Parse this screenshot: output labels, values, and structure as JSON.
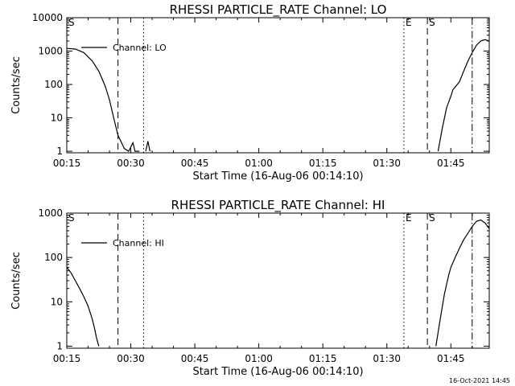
{
  "footer_timestamp": "16-Oct-2021 14:45",
  "colors": {
    "background": "#ffffff",
    "ink": "#000000"
  },
  "chart_data": [
    {
      "type": "line",
      "title": "RHESSI PARTICLE_RATE Channel: LO",
      "xlabel": "Start Time (16-Aug-06 00:14:10)",
      "ylabel": "Counts/sec",
      "yscale": "log",
      "xlim": [
        15,
        114
      ],
      "ylim": [
        0.9,
        10000
      ],
      "x_ticks": [
        15,
        30,
        45,
        60,
        75,
        90,
        105
      ],
      "x_tick_labels": [
        "00:15",
        "00:30",
        "00:45",
        "01:00",
        "01:15",
        "01:30",
        "01:45"
      ],
      "y_ticks": [
        1,
        10,
        100,
        1000,
        10000
      ],
      "y_tick_labels": [
        "1",
        "10",
        "100",
        "1000",
        "10000"
      ],
      "legend": {
        "entries": [
          "Channel: LO"
        ],
        "position": "top-left"
      },
      "series": [
        {
          "name": "Channel: LO",
          "segments": [
            {
              "x": [
                15,
                17,
                19,
                21,
                22.5,
                24,
                25,
                26,
                27,
                28.5,
                29.5,
                30.5,
                31,
                32
              ],
              "y": [
                1200,
                1150,
                900,
                500,
                250,
                90,
                35,
                10,
                3,
                1.2,
                1,
                1.8,
                1,
                1
              ]
            },
            {
              "x": [
                33.5,
                34,
                34.5
              ],
              "y": [
                1,
                2,
                1
              ]
            },
            {
              "x": [
                102,
                103,
                104,
                105,
                105.5,
                107,
                108,
                109,
                110,
                111,
                112,
                113,
                114
              ],
              "y": [
                1,
                5,
                20,
                45,
                70,
                120,
                250,
                500,
                900,
                1500,
                2000,
                2200,
                2000
              ]
            }
          ]
        }
      ],
      "markers": [
        {
          "label": "S",
          "x": 15,
          "style": "dashdot"
        },
        {
          "label": "",
          "x": 27,
          "style": "dashed"
        },
        {
          "label": "",
          "x": 33,
          "style": "dotted"
        },
        {
          "label": "E",
          "x": 94,
          "style": "dotted"
        },
        {
          "label": "S",
          "x": 99.5,
          "style": "dashed"
        },
        {
          "label": "",
          "x": 110,
          "style": "dashdot"
        }
      ]
    },
    {
      "type": "line",
      "title": "RHESSI PARTICLE_RATE Channel: HI",
      "xlabel": "Start Time (16-Aug-06 00:14:10)",
      "ylabel": "Counts/sec",
      "yscale": "log",
      "xlim": [
        15,
        114
      ],
      "ylim": [
        0.9,
        1000
      ],
      "x_ticks": [
        15,
        30,
        45,
        60,
        75,
        90,
        105
      ],
      "x_tick_labels": [
        "00:15",
        "00:30",
        "00:45",
        "01:00",
        "01:15",
        "01:30",
        "01:45"
      ],
      "y_ticks": [
        1,
        10,
        100,
        1000
      ],
      "y_tick_labels": [
        "1",
        "10",
        "100",
        "1000"
      ],
      "legend": {
        "entries": [
          "Channel: HI"
        ],
        "position": "top-left"
      },
      "series": [
        {
          "name": "Channel: HI",
          "segments": [
            {
              "x": [
                15,
                16,
                17,
                18,
                19,
                20,
                21,
                21.5,
                22,
                22.5
              ],
              "y": [
                60,
                45,
                30,
                20,
                13,
                8,
                4,
                2.5,
                1.5,
                1
              ]
            },
            {
              "x": [
                101.5,
                102.5,
                103.5,
                104.5,
                105,
                106,
                107,
                108,
                109,
                110,
                111,
                112,
                113,
                114
              ],
              "y": [
                1,
                4,
                15,
                40,
                60,
                100,
                160,
                250,
                350,
                500,
                650,
                700,
                600,
                450
              ]
            }
          ]
        }
      ],
      "markers": [
        {
          "label": "S",
          "x": 15,
          "style": "dashdot"
        },
        {
          "label": "",
          "x": 27,
          "style": "dashed"
        },
        {
          "label": "",
          "x": 33,
          "style": "dotted"
        },
        {
          "label": "E",
          "x": 94,
          "style": "dotted"
        },
        {
          "label": "S",
          "x": 99.5,
          "style": "dashed"
        },
        {
          "label": "",
          "x": 110,
          "style": "dashdot"
        }
      ]
    }
  ]
}
